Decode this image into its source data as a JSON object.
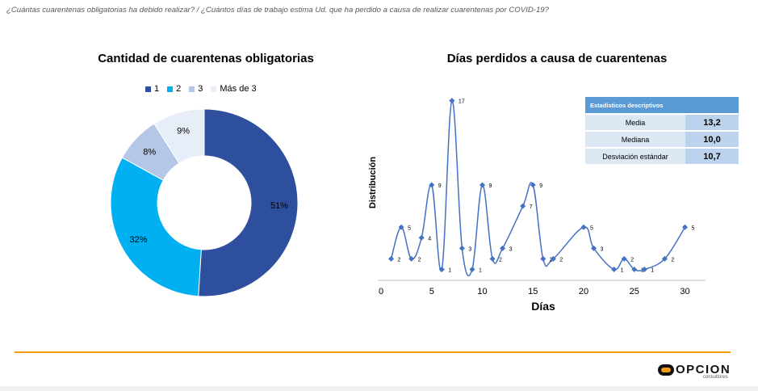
{
  "question": "¿Cuántas cuarentenas obligatorias ha debido realizar? / ¿Cuántos días de trabajo estima Ud. que ha perdido a causa de realizar cuarentenas por COVID-19?",
  "colors": {
    "accent": "#f39c12",
    "line": "#4472c4"
  },
  "chart_data": [
    {
      "type": "pie",
      "title": "Cantidad de cuarentenas obligatorias",
      "legend_position": "top",
      "categories": [
        "1",
        "2",
        "3",
        "Más de 3"
      ],
      "values": [
        51,
        32,
        8,
        9
      ],
      "labels": [
        "51%",
        "32%",
        "8%",
        "9%"
      ],
      "colors": [
        "#2e4f9e",
        "#00b0f0",
        "#b4c7e7",
        "#e7eef8"
      ]
    },
    {
      "type": "scatter",
      "title": "Días perdidos a causa de cuarentenas",
      "xlabel": "Días",
      "ylabel": "Distribución",
      "xlim": [
        0,
        32
      ],
      "ylim": [
        0,
        18
      ],
      "xticks": [
        0,
        5,
        10,
        15,
        20,
        25,
        30
      ],
      "points": [
        {
          "x": 1,
          "y": 2
        },
        {
          "x": 2,
          "y": 5
        },
        {
          "x": 3,
          "y": 2
        },
        {
          "x": 4,
          "y": 4
        },
        {
          "x": 5,
          "y": 9
        },
        {
          "x": 6,
          "y": 1
        },
        {
          "x": 7,
          "y": 17
        },
        {
          "x": 8,
          "y": 3
        },
        {
          "x": 9,
          "y": 1
        },
        {
          "x": 10,
          "y": 9
        },
        {
          "x": 11,
          "y": 2
        },
        {
          "x": 12,
          "y": 3
        },
        {
          "x": 14,
          "y": 7
        },
        {
          "x": 15,
          "y": 9
        },
        {
          "x": 16,
          "y": 2
        },
        {
          "x": 17,
          "y": 2
        },
        {
          "x": 20,
          "y": 5
        },
        {
          "x": 21,
          "y": 3
        },
        {
          "x": 23,
          "y": 1
        },
        {
          "x": 24,
          "y": 2
        },
        {
          "x": 25,
          "y": 1
        },
        {
          "x": 26,
          "y": 1
        },
        {
          "x": 28,
          "y": 2
        },
        {
          "x": 30,
          "y": 5
        }
      ]
    }
  ],
  "stats_table": {
    "header": "Estadísticos descriptivos",
    "rows": [
      {
        "label": "Media",
        "value": "13,2"
      },
      {
        "label": "Mediana",
        "value": "10,0"
      },
      {
        "label": "Desviación estándar",
        "value": "10,7"
      }
    ]
  },
  "logo": {
    "name": "OPCION",
    "tagline": "consultores"
  }
}
